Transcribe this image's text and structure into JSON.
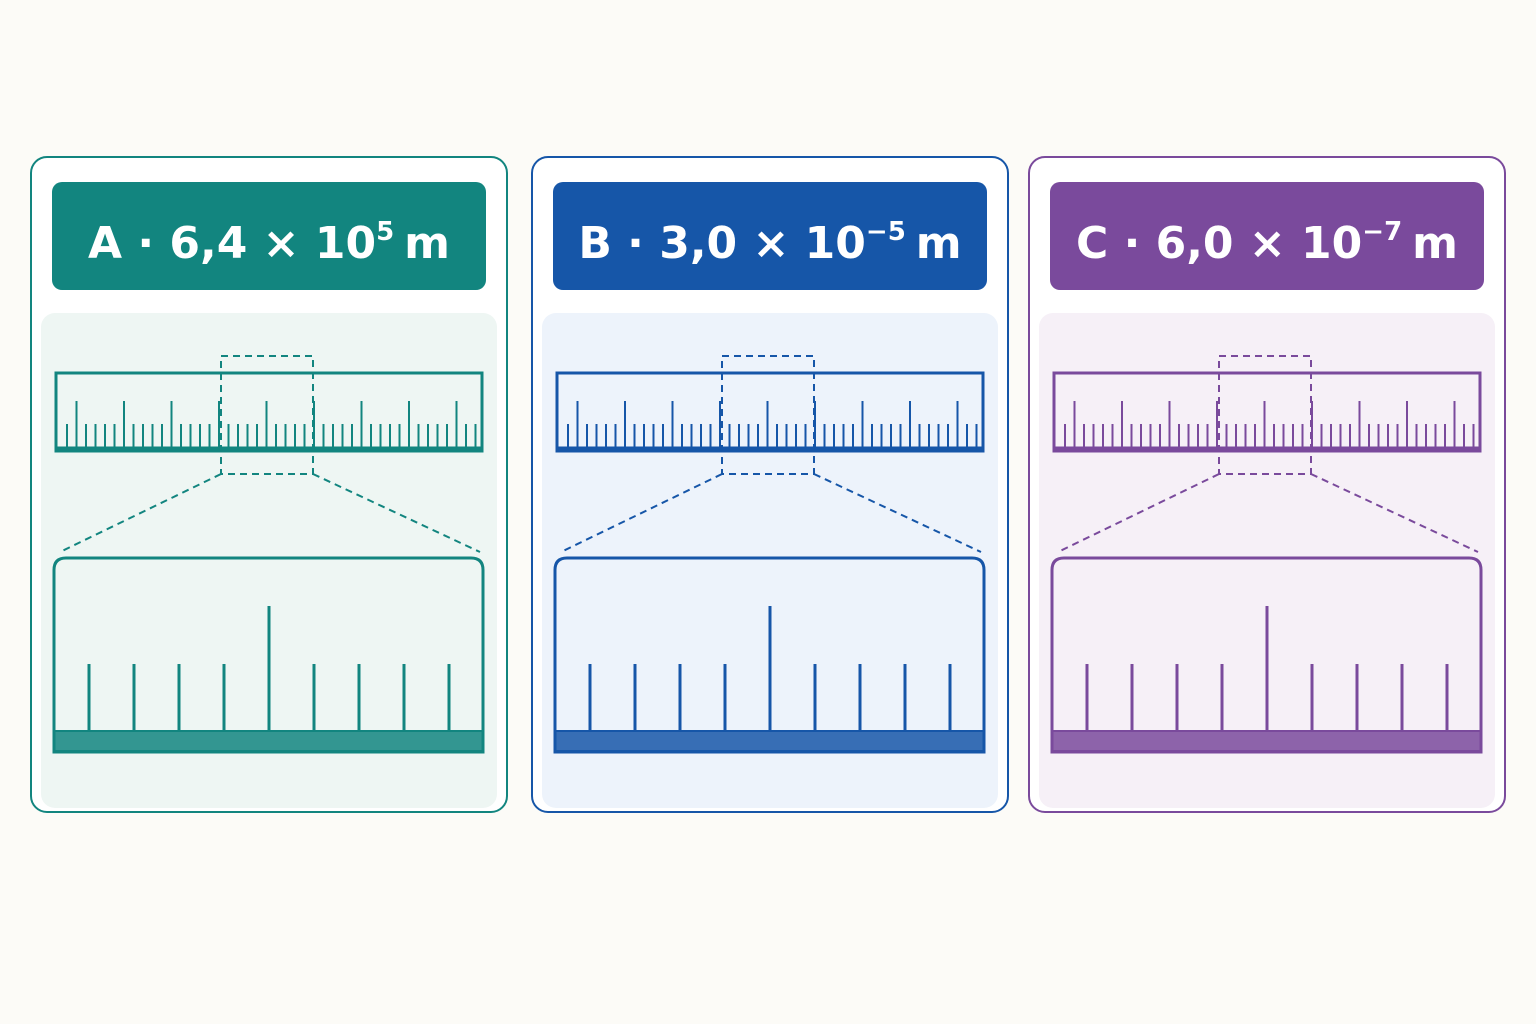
{
  "cards": [
    {
      "label": "A · 6,4 × 10",
      "exponent": "5",
      "unit": "m",
      "color": "#12857f",
      "tint": "#eef6f3"
    },
    {
      "label": "B · 3,0 × 10",
      "exponent": "−5",
      "unit": "m",
      "color": "#1656a8",
      "tint": "#edf3fb"
    },
    {
      "label": "C · 6,0 × 10",
      "exponent": "−7",
      "unit": "m",
      "color": "#7a4a9c",
      "tint": "#f6f0f7"
    }
  ]
}
